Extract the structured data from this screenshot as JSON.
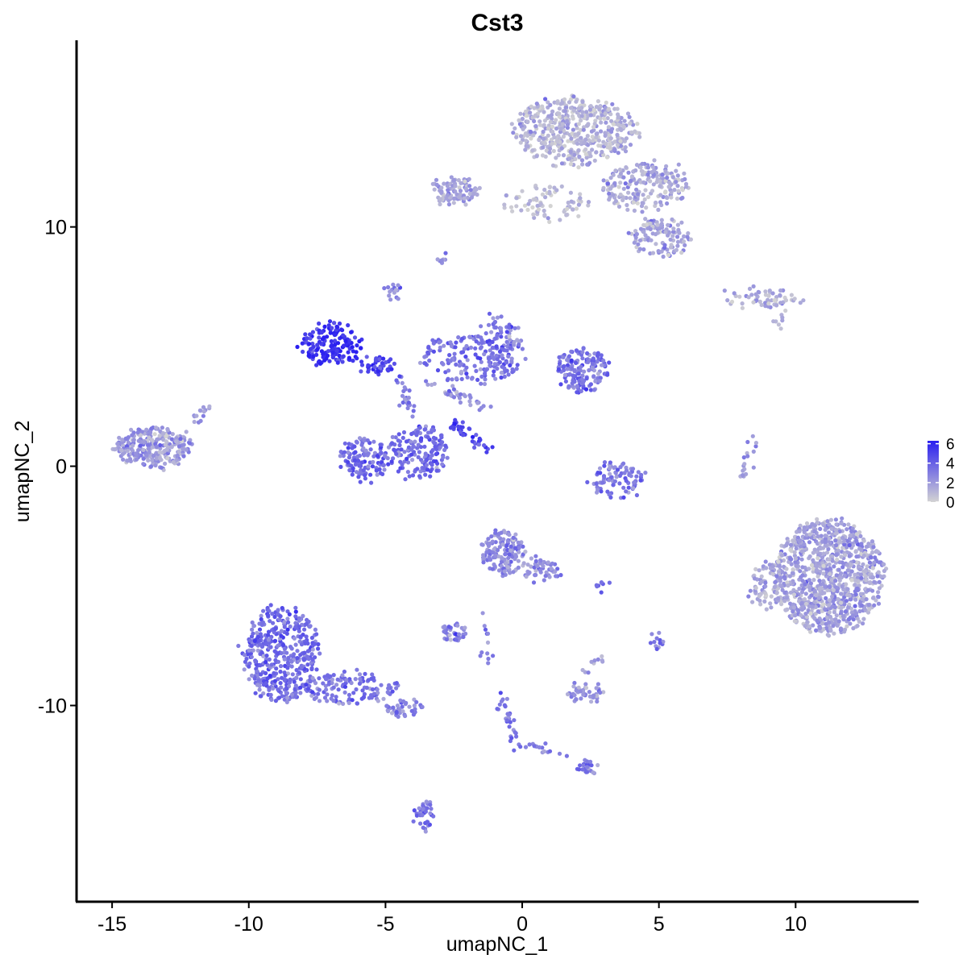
{
  "chart_data": {
    "type": "scatter",
    "title": "Cst3",
    "xlabel": "umapNC_1",
    "ylabel": "umapNC_2",
    "xlim": [
      -16.3,
      14.5
    ],
    "ylim": [
      -18.2,
      17.8
    ],
    "xticks": [
      -15,
      -10,
      -5,
      0,
      5,
      10
    ],
    "yticks": [
      -10,
      0,
      10
    ],
    "xtick_labels": [
      "-15",
      "-10",
      "-5",
      "0",
      "5",
      "10"
    ],
    "ytick_labels": [
      "-10",
      "0",
      "10"
    ],
    "grid": false,
    "legend_position": "right",
    "color_scale": {
      "low_color": "#d3d3d3",
      "high_color": "#2a1ff0",
      "min": 0,
      "max": 6.3,
      "ticks": [
        0,
        2,
        4,
        6
      ],
      "tick_labels": [
        "0",
        "2",
        "4",
        "6"
      ]
    },
    "clusters": [
      {
        "cx": 1.9,
        "cy": 14.0,
        "rx": 2.3,
        "ry": 1.4,
        "n": 500,
        "expr": 1.0
      },
      {
        "cx": 4.5,
        "cy": 11.7,
        "rx": 1.6,
        "ry": 1.0,
        "n": 200,
        "expr": 1.5
      },
      {
        "cx": 5.0,
        "cy": 9.6,
        "rx": 1.1,
        "ry": 0.8,
        "n": 110,
        "expr": 1.7
      },
      {
        "cx": -2.5,
        "cy": 11.5,
        "rx": 0.9,
        "ry": 0.6,
        "n": 70,
        "expr": 1.8
      },
      {
        "cx": 0.8,
        "cy": 11.0,
        "rx": 1.6,
        "ry": 0.7,
        "n": 80,
        "expr": 0.8
      },
      {
        "cx": 8.8,
        "cy": 7.0,
        "rx": 1.5,
        "ry": 0.35,
        "n": 60,
        "expr": 1.2
      },
      {
        "cx": -7.0,
        "cy": 5.1,
        "rx": 1.1,
        "ry": 0.9,
        "n": 160,
        "expr": 5.7
      },
      {
        "cx": -5.3,
        "cy": 4.2,
        "rx": 0.7,
        "ry": 0.3,
        "n": 40,
        "expr": 5.0
      },
      {
        "cx": -1.8,
        "cy": 4.5,
        "rx": 2.0,
        "ry": 1.0,
        "n": 150,
        "expr": 3.4
      },
      {
        "cx": -0.9,
        "cy": 5.3,
        "rx": 0.8,
        "ry": 1.0,
        "n": 80,
        "expr": 3.2
      },
      {
        "cx": 2.2,
        "cy": 4.0,
        "rx": 1.0,
        "ry": 0.9,
        "n": 150,
        "expr": 3.3
      },
      {
        "cx": -3.8,
        "cy": 0.6,
        "rx": 1.1,
        "ry": 1.1,
        "n": 160,
        "expr": 3.6
      },
      {
        "cx": -5.8,
        "cy": 0.3,
        "rx": 0.9,
        "ry": 0.9,
        "n": 120,
        "expr": 3.6
      },
      {
        "cx": 3.5,
        "cy": -0.6,
        "rx": 1.0,
        "ry": 0.8,
        "n": 90,
        "expr": 3.0
      },
      {
        "cx": -13.5,
        "cy": 0.8,
        "rx": 1.4,
        "ry": 0.85,
        "n": 280,
        "expr": 2.0
      },
      {
        "cx": 11.2,
        "cy": -4.6,
        "rx": 2.0,
        "ry": 2.4,
        "n": 950,
        "expr": 1.7
      },
      {
        "cx": 9.0,
        "cy": -5.0,
        "rx": 0.7,
        "ry": 1.0,
        "n": 80,
        "expr": 1.6
      },
      {
        "cx": -0.7,
        "cy": -3.6,
        "rx": 0.8,
        "ry": 0.9,
        "n": 150,
        "expr": 2.4
      },
      {
        "cx": 0.7,
        "cy": -4.4,
        "rx": 0.6,
        "ry": 0.5,
        "n": 50,
        "expr": 2.6
      },
      {
        "cx": -8.8,
        "cy": -7.8,
        "rx": 1.4,
        "ry": 2.0,
        "n": 420,
        "expr": 3.6
      },
      {
        "cx": -6.3,
        "cy": -9.3,
        "rx": 1.8,
        "ry": 0.7,
        "n": 130,
        "expr": 3.4
      },
      {
        "cx": -4.3,
        "cy": -10.1,
        "rx": 0.7,
        "ry": 0.3,
        "n": 40,
        "expr": 2.8
      },
      {
        "cx": -2.5,
        "cy": -6.9,
        "rx": 0.5,
        "ry": 0.4,
        "n": 40,
        "expr": 2.6
      },
      {
        "cx": 2.3,
        "cy": -9.5,
        "rx": 0.6,
        "ry": 0.4,
        "n": 45,
        "expr": 2.0
      },
      {
        "cx": 2.3,
        "cy": -12.6,
        "rx": 0.4,
        "ry": 0.3,
        "n": 25,
        "expr": 3.0
      },
      {
        "cx": -3.5,
        "cy": -14.6,
        "rx": 0.35,
        "ry": 0.6,
        "n": 40,
        "expr": 3.2
      },
      {
        "cx": 4.9,
        "cy": -7.3,
        "rx": 0.2,
        "ry": 0.3,
        "n": 12,
        "expr": 3.2
      },
      {
        "cx": -4.7,
        "cy": 7.3,
        "rx": 0.3,
        "ry": 0.3,
        "n": 15,
        "expr": 2.6
      },
      {
        "cx": -2.9,
        "cy": 8.7,
        "rx": 0.2,
        "ry": 0.15,
        "n": 8,
        "expr": 2.2
      },
      {
        "cx": 2.8,
        "cy": -5.0,
        "rx": 0.3,
        "ry": 0.1,
        "n": 8,
        "expr": 3.0
      }
    ],
    "trails": [
      {
        "x0": -2.5,
        "y0": 1.8,
        "x1": -1.2,
        "y1": 0.6,
        "n": 40,
        "expr": 5.0
      },
      {
        "x0": -0.8,
        "y0": -9.4,
        "x1": -0.2,
        "y1": -11.8,
        "n": 30,
        "expr": 3.3
      },
      {
        "x0": 0.2,
        "y0": -11.6,
        "x1": 1.6,
        "y1": -12.2,
        "n": 15,
        "expr": 3.0
      },
      {
        "x0": -1.5,
        "y0": -6.0,
        "x1": -1.2,
        "y1": -8.5,
        "n": 12,
        "expr": 2.8
      },
      {
        "x0": -1.2,
        "y0": 2.5,
        "x1": -3.5,
        "y1": 3.5,
        "n": 35,
        "expr": 2.5
      },
      {
        "x0": -4.0,
        "y0": 2.0,
        "x1": -4.5,
        "y1": 3.8,
        "n": 25,
        "expr": 3.0
      },
      {
        "x0": 8.0,
        "y0": -0.6,
        "x1": 8.5,
        "y1": 1.2,
        "n": 18,
        "expr": 2.2
      },
      {
        "x0": 9.2,
        "y0": 5.8,
        "x1": 9.6,
        "y1": 6.6,
        "n": 8,
        "expr": 1.2
      },
      {
        "x0": -3.1,
        "y0": 11.2,
        "x1": -1.5,
        "y1": 11.4,
        "n": 20,
        "expr": 1.4
      },
      {
        "x0": -12.2,
        "y0": 1.4,
        "x1": -11.4,
        "y1": 2.7,
        "n": 15,
        "expr": 1.8
      },
      {
        "x0": 2.2,
        "y0": -8.5,
        "x1": 3.2,
        "y1": -7.9,
        "n": 10,
        "expr": 1.8
      }
    ]
  }
}
